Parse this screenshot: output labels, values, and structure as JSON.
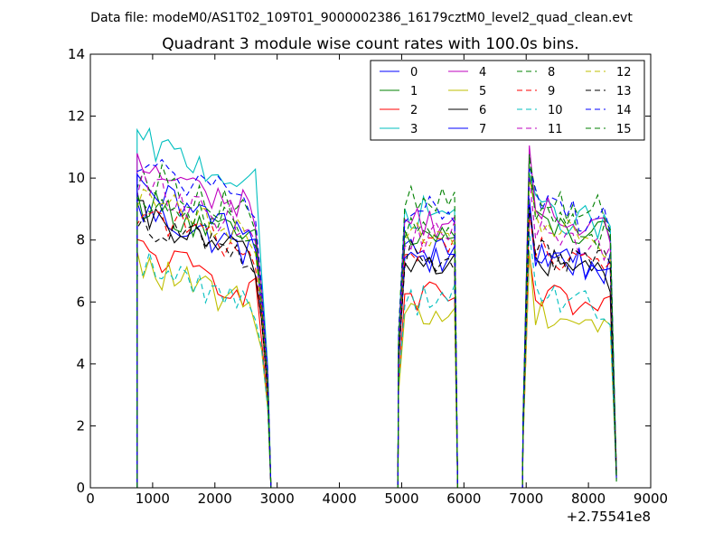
{
  "suptitle": "Data file: modeM0/AS1T02_109T01_9000002386_16179cztM0_level2_quad_clean.evt",
  "title": "Quadrant 3 module wise count rates with 100.0s bins.",
  "offset_label": "+2.75541e8",
  "chart_data": {
    "type": "line",
    "title": "Quadrant 3 module wise count rates with 100.0s bins.",
    "xlabel": "",
    "ylabel": "",
    "x_offset": "+2.75541e8",
    "xlim": [
      0,
      9000
    ],
    "ylim": [
      0,
      14
    ],
    "xticks": [
      0,
      1000,
      2000,
      3000,
      4000,
      5000,
      6000,
      7000,
      8000,
      9000
    ],
    "yticks": [
      0,
      2,
      4,
      6,
      8,
      10,
      12,
      14
    ],
    "grid": false,
    "legend_position": "top-right",
    "legend_columns": 4,
    "segments": [
      {
        "start": 750,
        "end": 2850
      },
      {
        "start": 4950,
        "end": 5850
      },
      {
        "start": 6950,
        "end": 8450
      }
    ],
    "series": [
      {
        "name": "0",
        "color": "#0000ff",
        "dashed": false,
        "levels": [
          9.0,
          7.6,
          7.6
        ]
      },
      {
        "name": "1",
        "color": "#008000",
        "dashed": false,
        "levels": [
          9.3,
          8.1,
          8.6
        ]
      },
      {
        "name": "2",
        "color": "#ff0000",
        "dashed": false,
        "levels": [
          7.7,
          6.1,
          6.2
        ]
      },
      {
        "name": "3",
        "color": "#00bfbf",
        "dashed": false,
        "levels": [
          11.2,
          8.9,
          9.0
        ]
      },
      {
        "name": "4",
        "color": "#bf00bf",
        "dashed": false,
        "levels": [
          10.4,
          8.6,
          9.0
        ]
      },
      {
        "name": "5",
        "color": "#bfbf00",
        "dashed": false,
        "levels": [
          7.2,
          5.6,
          5.8
        ]
      },
      {
        "name": "6",
        "color": "#000000",
        "dashed": false,
        "levels": [
          8.8,
          7.3,
          7.4
        ]
      },
      {
        "name": "7",
        "color": "#0000ff",
        "dashed": false,
        "levels": [
          9.6,
          7.5,
          7.6
        ]
      },
      {
        "name": "8",
        "color": "#008000",
        "dashed": true,
        "levels": [
          10.2,
          9.2,
          9.4
        ]
      },
      {
        "name": "9",
        "color": "#ff0000",
        "dashed": true,
        "levels": [
          9.0,
          7.7,
          7.8
        ]
      },
      {
        "name": "10",
        "color": "#00bfbf",
        "dashed": true,
        "levels": [
          7.3,
          6.1,
          6.3
        ]
      },
      {
        "name": "11",
        "color": "#bf00bf",
        "dashed": true,
        "levels": [
          9.8,
          8.1,
          8.3
        ]
      },
      {
        "name": "12",
        "color": "#bfbf00",
        "dashed": true,
        "levels": [
          9.4,
          8.3,
          8.5
        ]
      },
      {
        "name": "13",
        "color": "#000000",
        "dashed": true,
        "levels": [
          8.7,
          7.5,
          7.7
        ]
      },
      {
        "name": "14",
        "color": "#0000ff",
        "dashed": true,
        "levels": [
          10.5,
          9.0,
          9.2
        ]
      },
      {
        "name": "15",
        "color": "#008000",
        "dashed": true,
        "levels": [
          9.6,
          8.5,
          8.7
        ]
      }
    ]
  }
}
